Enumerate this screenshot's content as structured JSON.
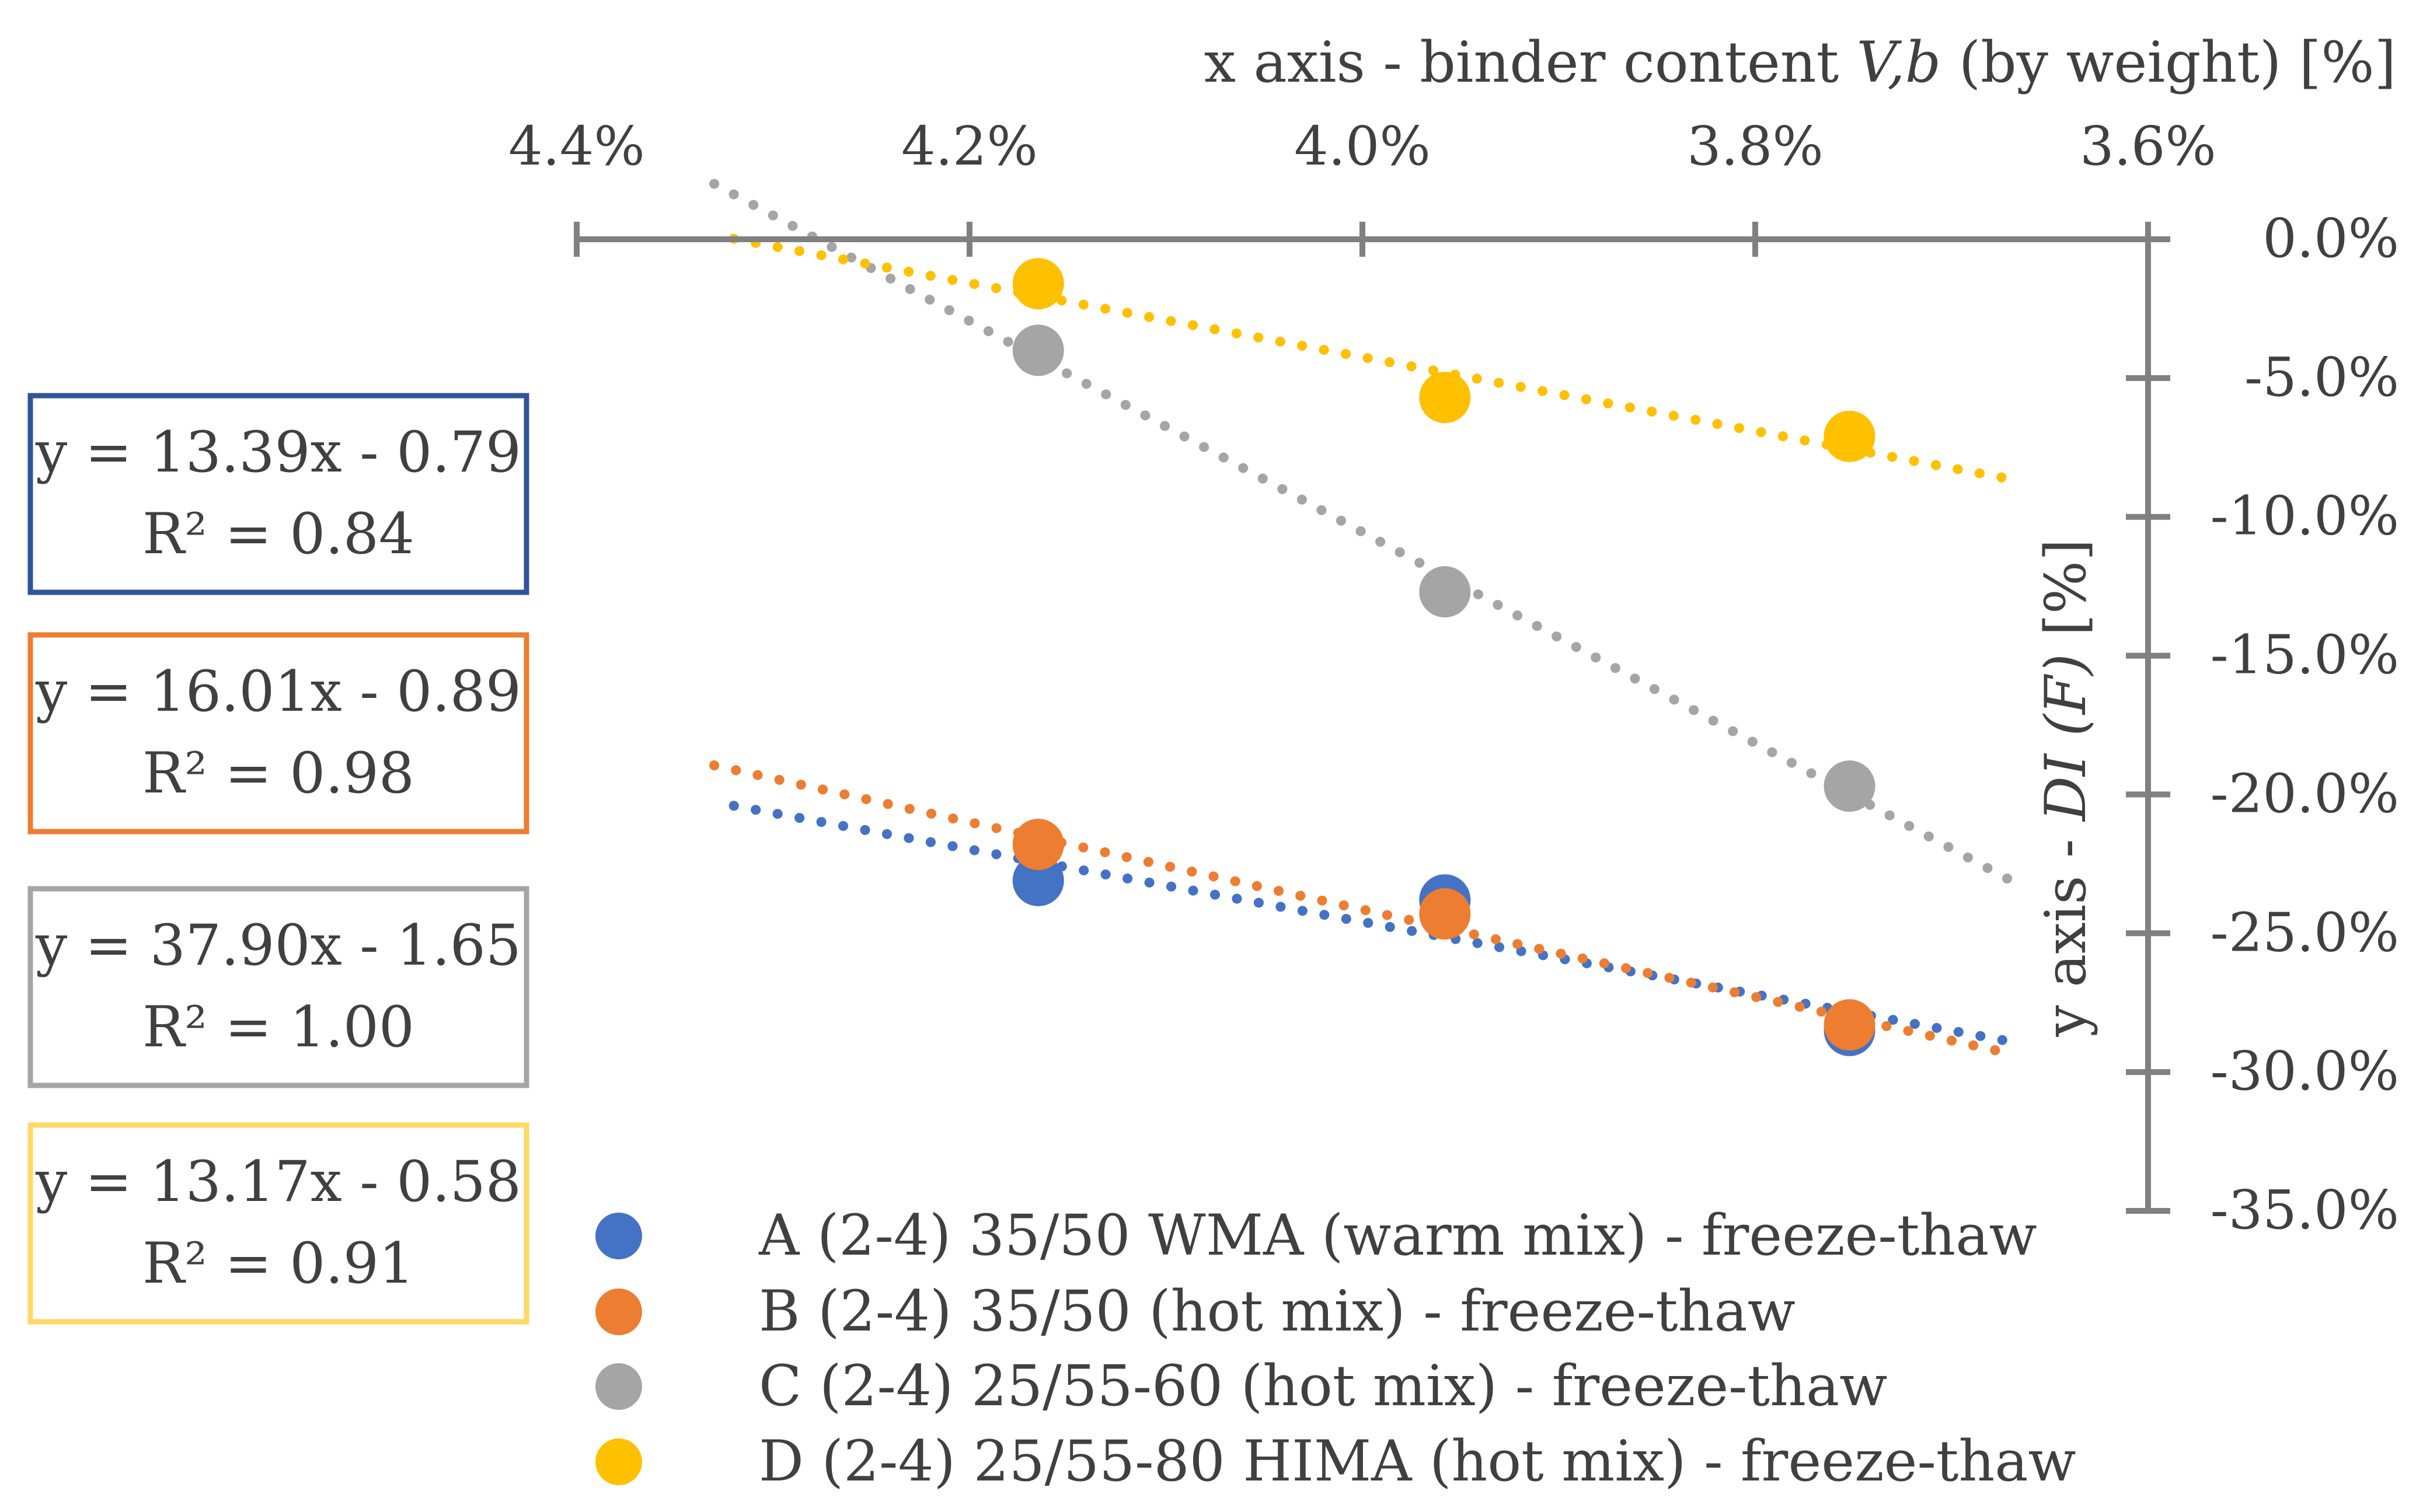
{
  "chart_data": {
    "type": "scatter",
    "x_axis": {
      "label_prefix": "x axis - binder content ",
      "label_var": "V,b",
      "label_suffix": " (by weight) [%]",
      "position": "top",
      "reversed": true,
      "min": 0.036,
      "max": 0.044,
      "ticks": [
        0.044,
        0.042,
        0.04,
        0.038,
        0.036
      ],
      "tick_labels": [
        "4.4%",
        "4.2%",
        "4.0%",
        "3.8%",
        "3.6%"
      ]
    },
    "y_axis": {
      "label_prefix": "y axis - ",
      "label_var": "DI (F)",
      "label_suffix": " [%]",
      "position": "right",
      "min": -0.35,
      "max": 0.0,
      "ticks": [
        0.0,
        -0.05,
        -0.1,
        -0.15,
        -0.2,
        -0.25,
        -0.3,
        -0.35
      ],
      "tick_labels": [
        "0.0%",
        "-5.0%",
        "-10.0%",
        "-15.0%",
        "-20.0%",
        "-25.0%",
        "-30.0%",
        "-35.0%"
      ]
    },
    "series": [
      {
        "name": "A (2-4) 35/50 WMA (warm mix) - freeze-thaw",
        "color": "#4472C4",
        "points": [
          {
            "x": 0.04165,
            "y": -0.231
          },
          {
            "x": 0.03958,
            "y": -0.238
          },
          {
            "x": 0.03752,
            "y": -0.285
          }
        ],
        "trend_range": [
          0.0432,
          0.0367
        ],
        "equation": "y = 13.39x - 0.79",
        "r2": "R² = 0.84"
      },
      {
        "name": "B (2-4) 35/50 (hot mix) - freeze-thaw",
        "color": "#ED7D31",
        "points": [
          {
            "x": 0.04165,
            "y": -0.218
          },
          {
            "x": 0.03958,
            "y": -0.243
          },
          {
            "x": 0.03752,
            "y": -0.283
          }
        ],
        "trend_range": [
          0.0433,
          0.0367
        ],
        "equation": "y = 16.01x - 0.89",
        "r2": "R² = 0.98"
      },
      {
        "name": "C (2-4) 25/55-60 (hot mix) - freeze-thaw",
        "color": "#A5A5A5",
        "points": [
          {
            "x": 0.04165,
            "y": -0.04
          },
          {
            "x": 0.03958,
            "y": -0.127
          },
          {
            "x": 0.03752,
            "y": -0.197
          }
        ],
        "trend_range": [
          0.0433,
          0.0367
        ],
        "equation": "y = 37.90x - 1.65",
        "r2": "R² = 1.00"
      },
      {
        "name": "D (2-4) 25/55-80 HIMA (hot mix) - freeze-thaw",
        "color": "#FFC000",
        "points": [
          {
            "x": 0.04165,
            "y": -0.016
          },
          {
            "x": 0.03958,
            "y": -0.057
          },
          {
            "x": 0.03752,
            "y": -0.071
          }
        ],
        "trend_range": [
          0.0432,
          0.0367
        ],
        "equation": "y = 13.17x - 0.58",
        "r2": "R² = 0.91"
      }
    ],
    "equation_box_colors": [
      "#2F5597",
      "#ED7D31",
      "#A5A5A5",
      "#FFD966"
    ],
    "legend_position": "bottom"
  }
}
